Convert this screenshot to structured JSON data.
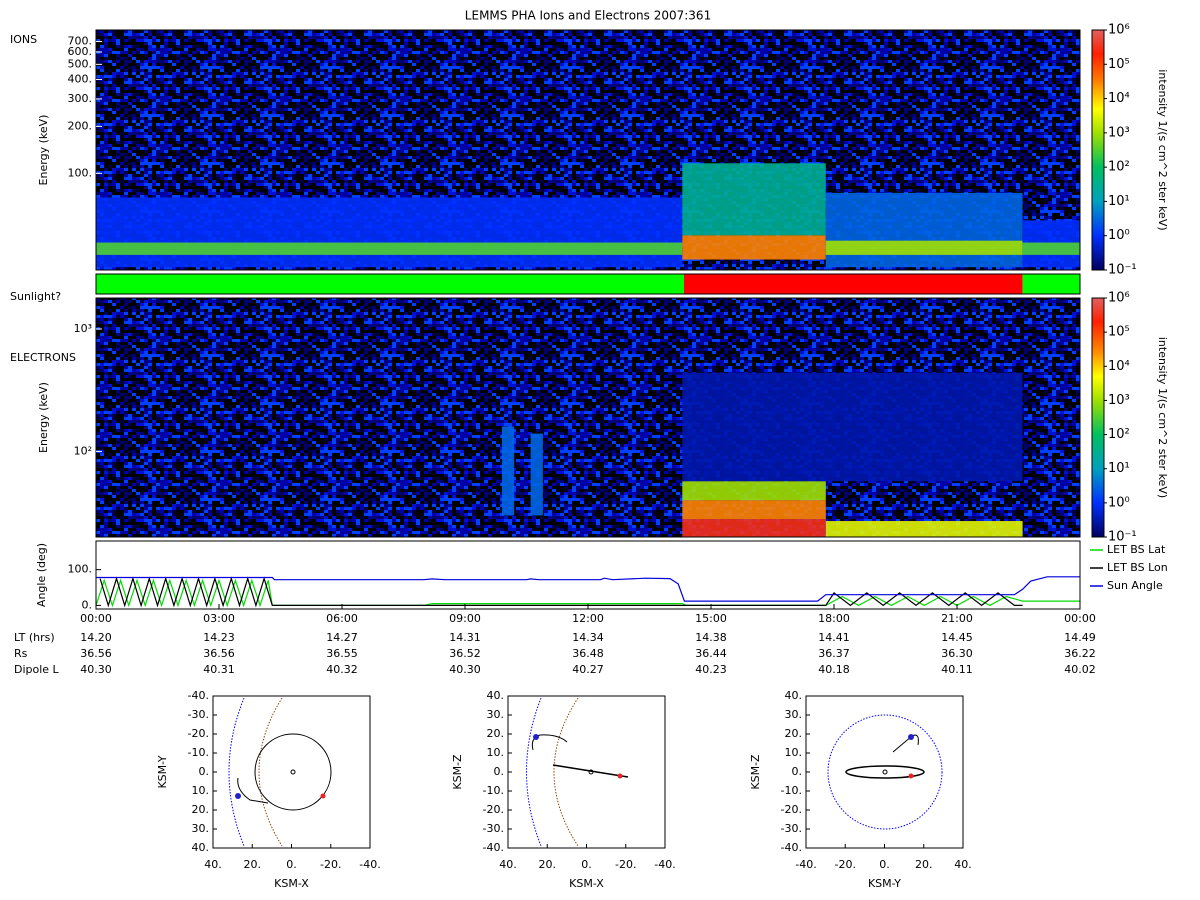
{
  "title": "LEMMS PHA Ions and Electrons  2007:361",
  "chart_data": [
    {
      "type": "spectrogram",
      "panel_label": "IONS",
      "ylabel": "Energy (keV)",
      "log_y": true,
      "xlim": [
        0,
        24
      ],
      "ylim": [
        24,
        830
      ],
      "yticks": [
        {
          "value": 100,
          "label": "100."
        },
        {
          "value": 200,
          "label": "200."
        },
        {
          "value": 300,
          "label": "300."
        },
        {
          "value": 400,
          "label": "400."
        },
        {
          "value": 500,
          "label": "500."
        },
        {
          "value": 600,
          "label": "600."
        },
        {
          "value": 700,
          "label": "700."
        }
      ],
      "regions": [
        {
          "x": [
            0,
            14.3
          ],
          "y": [
            25,
            70
          ],
          "intensity": 1
        },
        {
          "x": [
            0,
            14.3
          ],
          "y": [
            30,
            36
          ],
          "intensity": 300
        },
        {
          "x": [
            14.3,
            17.8
          ],
          "y": [
            40,
            116
          ],
          "intensity": 30
        },
        {
          "x": [
            14.3,
            17.8
          ],
          "y": [
            28,
            40
          ],
          "intensity": 30000
        },
        {
          "x": [
            17.8,
            22.6
          ],
          "y": [
            25,
            75
          ],
          "intensity": 3
        },
        {
          "x": [
            17.8,
            22.6
          ],
          "y": [
            30,
            37
          ],
          "intensity": 1000
        },
        {
          "x": [
            22.6,
            24
          ],
          "y": [
            25,
            50
          ],
          "intensity": 1
        },
        {
          "x": [
            22.6,
            24
          ],
          "y": [
            30,
            36
          ],
          "intensity": 300
        }
      ],
      "colorbar": {
        "label": "intensity 1/(s cm^2 ster keV)",
        "lim": [
          0.1,
          1000000
        ],
        "ticks": [
          {
            "value": 0.1,
            "label": "10⁻¹"
          },
          {
            "value": 1,
            "label": "10⁰"
          },
          {
            "value": 10,
            "label": "10¹"
          },
          {
            "value": 100,
            "label": "10²"
          },
          {
            "value": 1000,
            "label": "10³"
          },
          {
            "value": 10000,
            "label": "10⁴"
          },
          {
            "value": 100000,
            "label": "10⁵"
          },
          {
            "value": 1000000,
            "label": "10⁶"
          }
        ]
      }
    },
    {
      "type": "timeline",
      "label": "Sunlight?",
      "xlim": [
        0,
        24
      ],
      "segments": [
        {
          "x": [
            0,
            14.34
          ],
          "color": "#00ff00"
        },
        {
          "x": [
            14.34,
            22.6
          ],
          "color": "#ff0000"
        },
        {
          "x": [
            22.6,
            24
          ],
          "color": "#00ff00"
        }
      ]
    },
    {
      "type": "spectrogram",
      "panel_label": "ELECTRONS",
      "ylabel": "Energy (keV)",
      "log_y": true,
      "xlim": [
        0,
        24
      ],
      "ylim": [
        20,
        1790
      ],
      "yticks": [
        {
          "value": 100,
          "label": "10²"
        },
        {
          "value": 1000,
          "label": "10³"
        }
      ],
      "regions": [
        {
          "x": [
            14.3,
            22.6
          ],
          "y": [
            57,
            440
          ],
          "intensity": 0.3
        },
        {
          "x": [
            14.3,
            17.8
          ],
          "y": [
            20,
            28
          ],
          "intensity": 300000
        },
        {
          "x": [
            14.3,
            17.8
          ],
          "y": [
            28,
            40
          ],
          "intensity": 30000
        },
        {
          "x": [
            14.3,
            17.8
          ],
          "y": [
            40,
            57
          ],
          "intensity": 1000
        },
        {
          "x": [
            17.8,
            22.6
          ],
          "y": [
            20,
            27
          ],
          "intensity": 3000
        },
        {
          "x": [
            9.9,
            10.2
          ],
          "y": [
            30,
            160
          ],
          "intensity": 3
        },
        {
          "x": [
            10.6,
            10.9
          ],
          "y": [
            30,
            140
          ],
          "intensity": 3
        }
      ],
      "colorbar": {
        "label": "intensity 1/(s cm^2 ster keV)",
        "lim": [
          0.1,
          1000000
        ],
        "ticks": [
          {
            "value": 0.1,
            "label": "10⁻¹"
          },
          {
            "value": 1,
            "label": "10⁰"
          },
          {
            "value": 10,
            "label": "10¹"
          },
          {
            "value": 100,
            "label": "10²"
          },
          {
            "value": 1000,
            "label": "10³"
          },
          {
            "value": 10000,
            "label": "10⁴"
          },
          {
            "value": 100000,
            "label": "10⁵"
          },
          {
            "value": 1000000,
            "label": "10⁶"
          }
        ]
      }
    },
    {
      "type": "line",
      "ylabel": "Angle (deg)",
      "xlim": [
        0,
        24
      ],
      "ylim": [
        -10,
        180
      ],
      "yticks": [
        {
          "value": 0,
          "label": "0."
        },
        {
          "value": 100,
          "label": "100."
        }
      ],
      "xticks": [
        {
          "value": 0,
          "label": "00:00"
        },
        {
          "value": 3,
          "label": "03:00"
        },
        {
          "value": 6,
          "label": "06:00"
        },
        {
          "value": 9,
          "label": "09:00"
        },
        {
          "value": 12,
          "label": "12:00"
        },
        {
          "value": 15,
          "label": "15:00"
        },
        {
          "value": 18,
          "label": "18:00"
        },
        {
          "value": 21,
          "label": "21:00"
        },
        {
          "value": 24,
          "label": "00:00"
        }
      ],
      "legend": "right",
      "series": [
        {
          "name": "LET BS Lat",
          "color": "#00dd00",
          "x": [
            0,
            0.2,
            0.4,
            0.6,
            0.8,
            1.0,
            1.2,
            1.4,
            1.6,
            1.8,
            2.0,
            2.2,
            2.4,
            2.6,
            2.8,
            3.0,
            3.2,
            3.4,
            3.6,
            3.8,
            4.0,
            4.2,
            4.3,
            8.0,
            8.2,
            14.3,
            14.4,
            17.8,
            18.2,
            18.6,
            19.0,
            19.4,
            19.8,
            20.2,
            20.6,
            21.0,
            21.4,
            21.8,
            22.2,
            22.6,
            24
          ],
          "values": [
            0,
            70,
            0,
            70,
            0,
            70,
            0,
            70,
            0,
            70,
            0,
            70,
            0,
            70,
            0,
            70,
            0,
            70,
            0,
            70,
            0,
            70,
            0,
            0,
            5,
            5,
            0,
            0,
            25,
            0,
            25,
            0,
            25,
            0,
            25,
            0,
            25,
            0,
            25,
            12,
            12
          ]
        },
        {
          "name": "LET BS Lon",
          "color": "#000000",
          "x": [
            0.1,
            0.3,
            0.5,
            0.7,
            0.9,
            1.1,
            1.3,
            1.5,
            1.7,
            1.9,
            2.1,
            2.3,
            2.5,
            2.7,
            2.9,
            3.1,
            3.3,
            3.5,
            3.7,
            3.9,
            4.1,
            4.3,
            17.8,
            18.0,
            18.4,
            18.8,
            19.2,
            19.6,
            20.0,
            20.4,
            20.8,
            21.2,
            21.6,
            22.0,
            22.4,
            22.6
          ],
          "values": [
            75,
            0,
            75,
            0,
            75,
            0,
            75,
            0,
            75,
            0,
            75,
            0,
            75,
            0,
            75,
            0,
            75,
            0,
            75,
            0,
            75,
            0,
            0,
            35,
            0,
            35,
            0,
            35,
            0,
            35,
            0,
            35,
            0,
            35,
            0,
            0
          ]
        },
        {
          "name": "Sun Angle",
          "color": "#0000dd",
          "x": [
            0,
            4.3,
            4.35,
            8,
            8.2,
            8.5,
            10.5,
            10.6,
            10.8,
            12.3,
            12.4,
            12.6,
            13.4,
            14.0,
            14.2,
            14.35,
            17.6,
            17.8,
            22.4,
            22.6,
            22.8,
            23.2,
            24
          ],
          "values": [
            78,
            78,
            72,
            72,
            74,
            72,
            72,
            74,
            72,
            72,
            76,
            72,
            76,
            75,
            60,
            12,
            12,
            30,
            30,
            45,
            68,
            80,
            80
          ]
        }
      ]
    },
    {
      "type": "orbit",
      "xlabel": "KSM-X",
      "ylabel": "KSM-Y",
      "xlim": [
        40,
        -40
      ],
      "ylim": [
        -40,
        40
      ],
      "xticks": [
        {
          "value": 40,
          "label": "40."
        },
        {
          "value": 20,
          "label": "20."
        },
        {
          "value": 0,
          "label": "0."
        },
        {
          "value": -20,
          "label": "-20."
        },
        {
          "value": -40,
          "label": "-40."
        }
      ],
      "yticks": [
        {
          "value": -40,
          "label": "-40."
        },
        {
          "value": -30,
          "label": "-30."
        },
        {
          "value": -20,
          "label": "-20."
        },
        {
          "value": -10,
          "label": "-10."
        },
        {
          "value": 0,
          "label": "0."
        },
        {
          "value": 10,
          "label": "10."
        },
        {
          "value": 20,
          "label": "20."
        },
        {
          "value": 30,
          "label": "30."
        },
        {
          "value": 40,
          "label": "40."
        }
      ]
    },
    {
      "type": "orbit",
      "xlabel": "KSM-X",
      "ylabel": "KSM-Z",
      "xlim": [
        40,
        -40
      ],
      "ylim": [
        40,
        -40
      ],
      "xticks": [
        {
          "value": 40,
          "label": "40."
        },
        {
          "value": 20,
          "label": "20."
        },
        {
          "value": 0,
          "label": "0."
        },
        {
          "value": -20,
          "label": "-20."
        },
        {
          "value": -40,
          "label": "-40."
        }
      ],
      "yticks": [
        {
          "value": 40,
          "label": "40."
        },
        {
          "value": 30,
          "label": "30."
        },
        {
          "value": 20,
          "label": "20."
        },
        {
          "value": 10,
          "label": "10."
        },
        {
          "value": 0,
          "label": "0."
        },
        {
          "value": -10,
          "label": "-10."
        },
        {
          "value": -20,
          "label": "-20."
        },
        {
          "value": -30,
          "label": "-30."
        },
        {
          "value": -40,
          "label": "-40."
        }
      ]
    },
    {
      "type": "orbit",
      "xlabel": "KSM-Y",
      "ylabel": "KSM-Z",
      "xlim": [
        -40,
        40
      ],
      "ylim": [
        40,
        -40
      ],
      "xticks": [
        {
          "value": -40,
          "label": "-40."
        },
        {
          "value": -20,
          "label": "-20."
        },
        {
          "value": 0,
          "label": "0."
        },
        {
          "value": 20,
          "label": "20."
        },
        {
          "value": 40,
          "label": "40."
        }
      ],
      "yticks": [
        {
          "value": 40,
          "label": "40."
        },
        {
          "value": 30,
          "label": "30."
        },
        {
          "value": 20,
          "label": "20."
        },
        {
          "value": 10,
          "label": "10."
        },
        {
          "value": 0,
          "label": "0."
        },
        {
          "value": -10,
          "label": "-10."
        },
        {
          "value": -20,
          "label": "-20."
        },
        {
          "value": -30,
          "label": "-30."
        },
        {
          "value": -40,
          "label": "-40."
        }
      ]
    }
  ],
  "ephemeris": {
    "rows": [
      {
        "label": "LT (hrs)",
        "values": [
          "14.20",
          "14.23",
          "14.27",
          "14.31",
          "14.34",
          "14.38",
          "14.41",
          "14.45",
          "14.49"
        ]
      },
      {
        "label": "Rs",
        "values": [
          "36.56",
          "36.56",
          "36.55",
          "36.52",
          "36.48",
          "36.44",
          "36.37",
          "36.30",
          "36.22"
        ]
      },
      {
        "label": "Dipole L",
        "values": [
          "40.30",
          "40.31",
          "40.32",
          "40.30",
          "40.27",
          "40.23",
          "40.18",
          "40.11",
          "40.02"
        ]
      }
    ]
  }
}
